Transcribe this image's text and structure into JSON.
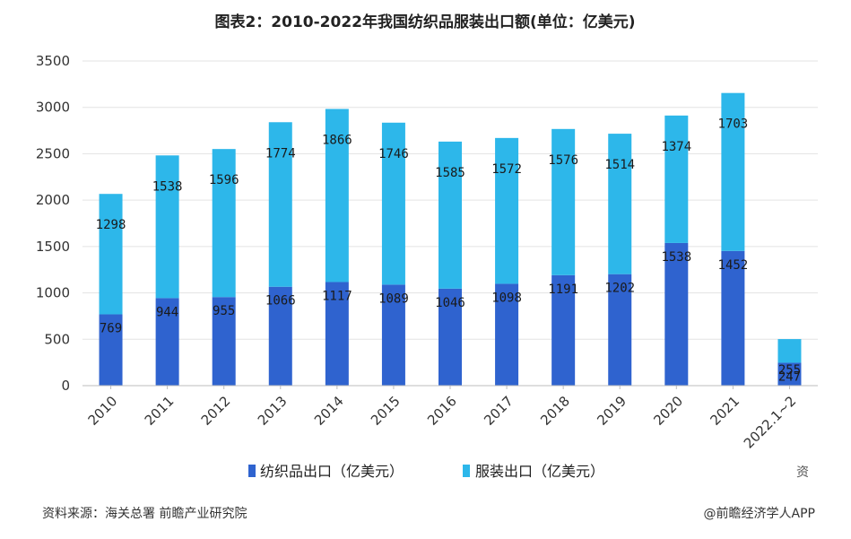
{
  "chart_data": {
    "type": "bar",
    "stacked": true,
    "title": "图表2：2010-2022年我国纺织品服装出口额(单位：亿美元)",
    "categories": [
      "2010",
      "2011",
      "2012",
      "2013",
      "2014",
      "2015",
      "2016",
      "2017",
      "2018",
      "2019",
      "2020",
      "2021",
      "2022.1~2"
    ],
    "series": [
      {
        "name": "纺织品出口（亿美元）",
        "color": "#2f63cf",
        "values": [
          769,
          944,
          955,
          1066,
          1117,
          1089,
          1046,
          1098,
          1191,
          1202,
          1538,
          1452,
          247
        ]
      },
      {
        "name": "服装出口（亿美元）",
        "color": "#2db7ea",
        "values": [
          1298,
          1538,
          1596,
          1774,
          1866,
          1746,
          1585,
          1572,
          1576,
          1514,
          1374,
          1703,
          255
        ]
      }
    ],
    "ylim": [
      0,
      3500
    ],
    "yticks": [
      0,
      500,
      1000,
      1500,
      2000,
      2500,
      3000,
      3500
    ],
    "grid": true,
    "legend_position": "bottom"
  },
  "footer": {
    "source": "资料来源：海关总署 前瞻产业研究院",
    "brand": "@前瞻经济学人APP"
  },
  "corner_text": "资"
}
